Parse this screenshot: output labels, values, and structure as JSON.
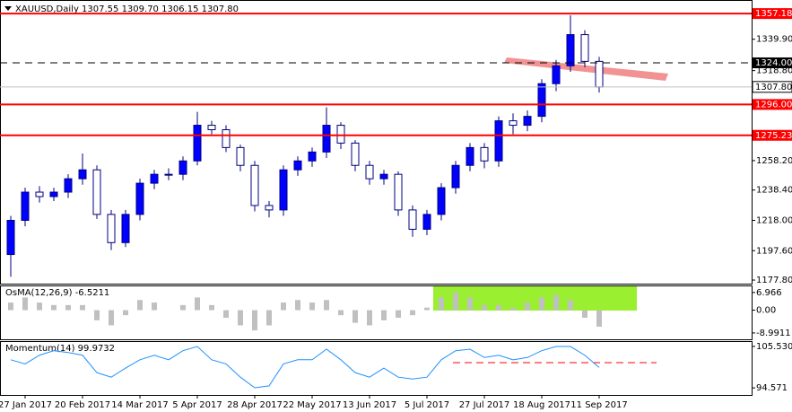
{
  "chart_data": [
    {
      "type": "candlestick",
      "title": "XAUUSD,Daily  1307.55 1309.70 1306.15 1307.80",
      "categories": [
        null,
        "27 Jan 2017",
        null,
        null,
        null,
        "20 Feb 2017",
        null,
        null,
        null,
        "14 Mar 2017",
        null,
        null,
        null,
        "5 Apr 2017",
        null,
        null,
        null,
        "28 Apr 2017",
        null,
        null,
        null,
        "22 May 2017",
        null,
        null,
        null,
        "13 Jun 2017",
        null,
        null,
        null,
        "5 Jul 2017",
        null,
        null,
        null,
        "27 Jul 2017",
        null,
        null,
        null,
        "18 Aug 2017",
        null,
        null,
        null,
        "11 Sep 2017"
      ],
      "open": [
        1195,
        1218,
        1237,
        1234,
        1237,
        1246,
        1252,
        1222,
        1203,
        1222,
        1243,
        1249,
        1249,
        1258,
        1282,
        1279,
        1267,
        1255,
        1228,
        1225,
        1252,
        1258,
        1264,
        1282,
        1270,
        1255,
        1246,
        1249,
        1225,
        1212,
        1222,
        1240,
        1255,
        1267,
        1258,
        1285,
        1282,
        1288,
        1310,
        1322,
        1343,
        1325
      ],
      "high": [
        1221,
        1240,
        1241,
        1240,
        1249,
        1263,
        1255,
        1225,
        1225,
        1246,
        1252,
        1253,
        1261,
        1291,
        1285,
        1282,
        1269,
        1258,
        1231,
        1255,
        1261,
        1267,
        1294,
        1284,
        1272,
        1258,
        1252,
        1251,
        1228,
        1225,
        1243,
        1258,
        1270,
        1270,
        1288,
        1290,
        1292,
        1313,
        1326,
        1356,
        1346,
        1328
      ],
      "low": [
        1180,
        1214,
        1230,
        1231,
        1233,
        1242,
        1219,
        1198,
        1200,
        1218,
        1239,
        1245,
        1245,
        1255,
        1276,
        1264,
        1251,
        1224,
        1220,
        1221,
        1248,
        1254,
        1260,
        1266,
        1251,
        1242,
        1242,
        1221,
        1207,
        1208,
        1218,
        1236,
        1251,
        1253,
        1254,
        1276,
        1278,
        1284,
        1305,
        1318,
        1321,
        1304
      ],
      "close": [
        1218,
        1237,
        1234,
        1237,
        1246,
        1252,
        1222,
        1203,
        1222,
        1243,
        1249,
        1249,
        1258,
        1282,
        1279,
        1267,
        1255,
        1228,
        1225,
        1252,
        1258,
        1264,
        1282,
        1270,
        1255,
        1246,
        1249,
        1225,
        1212,
        1222,
        1240,
        1255,
        1267,
        1258,
        1285,
        1282,
        1288,
        1310,
        1322,
        1343,
        1325,
        1307.8
      ],
      "up_color": "#0000ff",
      "down_color": "#ffffff",
      "ylim": [
        1175.4,
        1365.7
      ],
      "yticks": [
        {
          "value": 1339.9,
          "label": "1339.90"
        },
        {
          "value": 1318.8,
          "label": "1318.80"
        },
        {
          "value": 1258.2,
          "label": "1258.20"
        },
        {
          "value": 1238.4,
          "label": "1238.40"
        },
        {
          "value": 1218,
          "label": "1218.00"
        },
        {
          "value": 1197.6,
          "label": "1197.60"
        },
        {
          "value": 1177.8,
          "label": "1177.80"
        }
      ],
      "levels": [
        {
          "value": 1357.18,
          "color": "#ff0000"
        },
        {
          "value": 1324,
          "label": "1324.00",
          "color": "#000000",
          "dash": true
        },
        {
          "value": 1307.8,
          "label": "1307.80",
          "color": "#c0c0c0"
        },
        {
          "value": 1296,
          "label": "1296.00",
          "color": "#ff0000"
        },
        {
          "value": 1275.23,
          "color": "#ff0000"
        }
      ]
    },
    {
      "type": "bar",
      "title": "OsMA(12,26,9) -6.5211",
      "color": "#c0c0c0",
      "values": [
        3,
        5,
        3,
        2,
        2,
        2,
        -4,
        -6,
        -2,
        4,
        3,
        0,
        2,
        5,
        2,
        -3,
        -6,
        -8,
        -6,
        3,
        4,
        3,
        4,
        -2,
        -5,
        -6,
        -4,
        -3,
        -2,
        1,
        5,
        7,
        5,
        2,
        2,
        1,
        3,
        5,
        6,
        4,
        -3,
        -6.5211
      ],
      "ylim": [
        -11.5,
        9.4
      ],
      "yticks": [
        6.966,
        {
          "value": 0,
          "label": "0.00"
        },
        -8.9911
      ]
    },
    {
      "type": "line",
      "title": "Momentum(14) 99.9732",
      "color": "#1e90ff",
      "values": [
        102.0,
        100.9,
        103.2,
        104.4,
        103.9,
        103.2,
        98.6,
        97.4,
        99.8,
        102.0,
        103.2,
        102.0,
        104.4,
        105.5,
        102.0,
        100.9,
        97.4,
        94.6,
        95.1,
        100.9,
        102.0,
        102.0,
        104.8,
        102.0,
        98.6,
        97.4,
        99.8,
        97.4,
        96.9,
        97.4,
        102.0,
        104.4,
        104.8,
        102.6,
        103.2,
        102.0,
        102.6,
        104.4,
        105.5,
        105.5,
        103.2,
        99.9732
      ],
      "ylim": [
        92.7,
        106.7
      ],
      "yticks": [
        105.5305,
        94.571
      ]
    }
  ]
}
